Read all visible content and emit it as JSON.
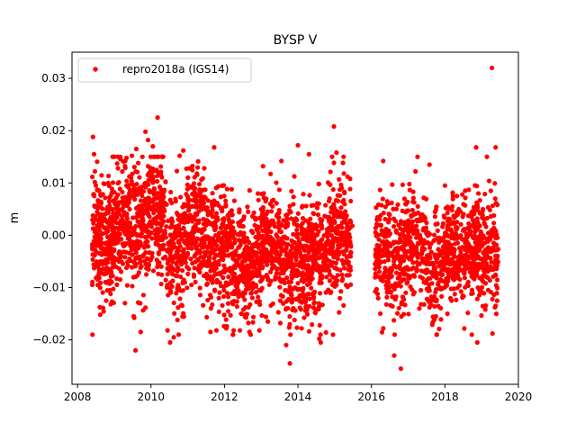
{
  "chart_data": {
    "type": "scatter",
    "title": "BYSP V",
    "xlabel": "",
    "ylabel": "m",
    "xlim": [
      2007.85,
      2020.0
    ],
    "ylim": [
      -0.0285,
      0.035
    ],
    "xticks": [
      2008,
      2010,
      2012,
      2014,
      2016,
      2018,
      2020
    ],
    "xtick_labels": [
      "2008",
      "2010",
      "2012",
      "2014",
      "2016",
      "2018",
      "2020"
    ],
    "yticks": [
      -0.02,
      -0.01,
      0.0,
      0.01,
      0.02,
      0.03
    ],
    "ytick_labels": [
      "−0.02",
      "−0.01",
      "0.00",
      "0.01",
      "0.02",
      "0.03"
    ],
    "grid": false,
    "legend_position": "top-left",
    "series": [
      {
        "name": "repro2018a (IGS14)",
        "color": "#ff0000",
        "marker": "circle",
        "points": [
          [
            2008.42,
            0.0188
          ],
          [
            2008.45,
            0.0155
          ],
          [
            2008.5,
            0.0095
          ],
          [
            2008.55,
            -0.0095
          ],
          [
            2008.62,
            -0.0152
          ],
          [
            2008.78,
            -0.0125
          ],
          [
            2008.9,
            -0.0112
          ],
          [
            2009.1,
            0.0128
          ],
          [
            2009.22,
            0.0122
          ],
          [
            2009.3,
            0.0142
          ],
          [
            2009.48,
            0.0152
          ],
          [
            2009.58,
            -0.022
          ],
          [
            2009.6,
            0.0165
          ],
          [
            2009.72,
            -0.0185
          ],
          [
            2009.85,
            0.0198
          ],
          [
            2009.92,
            0.0182
          ],
          [
            2010.05,
            0.017
          ],
          [
            2010.18,
            0.0225
          ],
          [
            2010.45,
            -0.0182
          ],
          [
            2010.52,
            -0.0205
          ],
          [
            2010.62,
            -0.0195
          ],
          [
            2010.72,
            -0.0162
          ],
          [
            2010.78,
            0.0152
          ],
          [
            2010.88,
            0.0162
          ],
          [
            2011.05,
            0.0128
          ],
          [
            2011.25,
            0.0118
          ],
          [
            2011.45,
            0.0128
          ],
          [
            2011.62,
            -0.0185
          ],
          [
            2011.72,
            0.0168
          ],
          [
            2011.78,
            -0.0182
          ],
          [
            2012.05,
            -0.0178
          ],
          [
            2012.25,
            -0.0182
          ],
          [
            2012.42,
            -0.0182
          ],
          [
            2012.55,
            -0.0152
          ],
          [
            2012.68,
            -0.0185
          ],
          [
            2012.95,
            -0.0182
          ],
          [
            2013.05,
            0.0132
          ],
          [
            2013.18,
            -0.0165
          ],
          [
            2013.52,
            -0.0168
          ],
          [
            2013.55,
            0.0142
          ],
          [
            2013.68,
            -0.021
          ],
          [
            2013.78,
            -0.0245
          ],
          [
            2014.0,
            0.0172
          ],
          [
            2014.1,
            -0.0178
          ],
          [
            2014.3,
            0.0155
          ],
          [
            2014.58,
            -0.0198
          ],
          [
            2014.62,
            -0.0205
          ],
          [
            2014.98,
            0.0208
          ],
          [
            2015.05,
            0.0158
          ],
          [
            2015.25,
            0.0118
          ],
          [
            2015.35,
            0.0112
          ],
          [
            2015.42,
            0.0108
          ],
          [
            2015.48,
            0.0018
          ],
          [
            2016.1,
            -0.0055
          ],
          [
            2016.32,
            0.0142
          ],
          [
            2016.55,
            0.0062
          ],
          [
            2016.62,
            -0.023
          ],
          [
            2016.72,
            -0.0082
          ],
          [
            2016.8,
            -0.0255
          ],
          [
            2017.2,
            0.0122
          ],
          [
            2017.35,
            -0.0132
          ],
          [
            2017.58,
            0.0135
          ],
          [
            2017.72,
            -0.0158
          ],
          [
            2018.0,
            0.0095
          ],
          [
            2018.18,
            -0.0125
          ],
          [
            2018.35,
            -0.0082
          ],
          [
            2018.55,
            0.0085
          ],
          [
            2018.85,
            0.0168
          ],
          [
            2018.88,
            -0.0205
          ],
          [
            2019.1,
            -0.0142
          ],
          [
            2019.28,
            0.032
          ],
          [
            2019.38,
            0.0168
          ],
          [
            2019.38,
            -0.0135
          ],
          [
            2019.25,
            0.0085
          ],
          [
            2019.18,
            -0.0105
          ],
          [
            2018.72,
            -0.0112
          ]
        ],
        "clusters": [
          {
            "x": [
              2008.4,
              2009.0
            ],
            "mean": -0.0005,
            "sd": 0.0055,
            "n": 260
          },
          {
            "x": [
              2009.0,
              2009.9
            ],
            "mean": 0.001,
            "sd": 0.0058,
            "n": 320
          },
          {
            "x": [
              2009.9,
              2010.4
            ],
            "mean": 0.004,
            "sd": 0.0055,
            "n": 200
          },
          {
            "x": [
              2010.4,
              2010.9
            ],
            "mean": -0.003,
            "sd": 0.006,
            "n": 160
          },
          {
            "x": [
              2010.9,
              2011.5
            ],
            "mean": 0.001,
            "sd": 0.0055,
            "n": 220
          },
          {
            "x": [
              2011.5,
              2012.2
            ],
            "mean": -0.003,
            "sd": 0.0055,
            "n": 250
          },
          {
            "x": [
              2012.2,
              2013.0
            ],
            "mean": -0.005,
            "sd": 0.005,
            "n": 280
          },
          {
            "x": [
              2013.0,
              2013.5
            ],
            "mean": -0.002,
            "sd": 0.0055,
            "n": 170
          },
          {
            "x": [
              2013.5,
              2014.2
            ],
            "mean": -0.006,
            "sd": 0.0055,
            "n": 260
          },
          {
            "x": [
              2014.2,
              2014.8
            ],
            "mean": -0.004,
            "sd": 0.0055,
            "n": 220
          },
          {
            "x": [
              2014.8,
              2015.45
            ],
            "mean": 0.0,
            "sd": 0.0058,
            "n": 230
          },
          {
            "x": [
              2016.1,
              2016.9
            ],
            "mean": -0.004,
            "sd": 0.0052,
            "n": 240
          },
          {
            "x": [
              2016.9,
              2017.5
            ],
            "mean": -0.002,
            "sd": 0.0052,
            "n": 190
          },
          {
            "x": [
              2017.5,
              2017.95
            ],
            "mean": -0.007,
            "sd": 0.005,
            "n": 120
          },
          {
            "x": [
              2017.95,
              2018.6
            ],
            "mean": -0.003,
            "sd": 0.0048,
            "n": 230
          },
          {
            "x": [
              2018.6,
              2019.45
            ],
            "mean": -0.003,
            "sd": 0.0052,
            "n": 290
          }
        ]
      }
    ]
  }
}
